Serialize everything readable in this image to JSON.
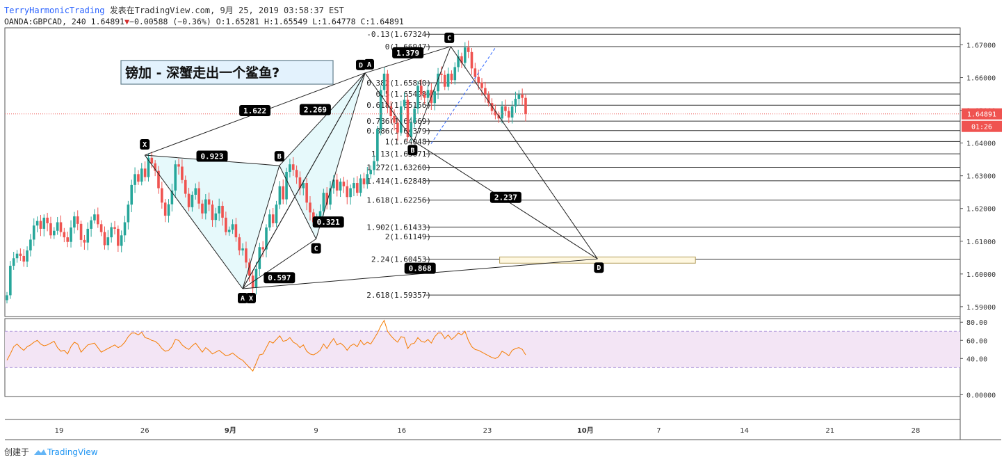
{
  "header": {
    "author": "TerryHarmonicTrading",
    "published": "发表在TradingView.com, 9月 25, 2019 03:58:37 EST",
    "symbol": "OANDA:GBPCAD, 240",
    "last": "1.64891",
    "change": "−0.00588 (−0.36%)",
    "o_label": "O:",
    "o": "1.65281",
    "h_label": "H:",
    "h": "1.65549",
    "l_label": "L:",
    "l": "1.64778",
    "c_label": "C:",
    "c": "1.64891"
  },
  "footer": {
    "created": "创建于",
    "brand": "TradingView"
  },
  "colors": {
    "up": "#26a69a",
    "down": "#ef5350",
    "pattern_fill": "#e0f7fa",
    "rsi_line": "#f57c00",
    "rsi_band": "#f3e5f5",
    "price_tag": "#ef5350",
    "label_bg": "#000000",
    "fib_line": "#333333"
  },
  "chart_data": {
    "type": "candlestick",
    "title": "镑加 - 深蟹走出一个鲨鱼?",
    "y_axis": {
      "range": [
        1.587,
        1.6752
      ],
      "ticks": [
        "1.59000",
        "1.60000",
        "1.61000",
        "1.62000",
        "1.63000",
        "1.64000",
        "1.65000",
        "1.66000",
        "1.67000"
      ]
    },
    "x_axis": {
      "ticks": [
        {
          "label": "19",
          "date": "2019-08-19"
        },
        {
          "label": "26",
          "date": "2019-08-26"
        },
        {
          "label": "9月",
          "date": "2019-09-02"
        },
        {
          "label": "9",
          "date": "2019-09-09"
        },
        {
          "label": "16",
          "date": "2019-09-16"
        },
        {
          "label": "23",
          "date": "2019-09-23"
        },
        {
          "label": "10月",
          "date": "2019-10-01"
        },
        {
          "label": "7",
          "date": "2019-10-07"
        },
        {
          "label": "14",
          "date": "2019-10-14"
        },
        {
          "label": "21",
          "date": "2019-10-21"
        },
        {
          "label": "28",
          "date": "2019-10-28"
        }
      ]
    },
    "current_price": {
      "value": 1.64891,
      "label": "1.64891",
      "countdown": "01:26"
    },
    "closes": [
      1.5935,
      1.6025,
      1.6048,
      1.6062,
      1.6055,
      1.6038,
      1.6072,
      1.6105,
      1.6148,
      1.6162,
      1.6138,
      1.6172,
      1.6155,
      1.6118,
      1.6132,
      1.6158,
      1.6128,
      1.6112,
      1.6098,
      1.6142,
      1.6176,
      1.6153,
      1.6104,
      1.6096,
      1.6138,
      1.6164,
      1.6182,
      1.6152,
      1.6128,
      1.6088,
      1.6112,
      1.6143,
      1.6138,
      1.6086,
      1.6118,
      1.6158,
      1.6212,
      1.6272,
      1.6305,
      1.6282,
      1.6322,
      1.6296,
      1.6355,
      1.6338,
      1.6315,
      1.6262,
      1.6218,
      1.6178,
      1.6213,
      1.6255,
      1.6335,
      1.6328,
      1.6287,
      1.6245,
      1.6204,
      1.6242,
      1.6262,
      1.6215,
      1.6185,
      1.6228,
      1.6212,
      1.6165,
      1.6185,
      1.6208,
      1.6172,
      1.6128,
      1.6135,
      1.6152,
      1.6112,
      1.6072,
      1.6078,
      1.6035,
      1.5995,
      1.5958,
      1.6015,
      1.6082,
      1.6075,
      1.6142,
      1.6182,
      1.6155,
      1.6212,
      1.6268,
      1.6228,
      1.6312,
      1.6335,
      1.6318,
      1.6295,
      1.6262,
      1.6278,
      1.6218,
      1.6188,
      1.6158,
      1.6168,
      1.6192,
      1.6248,
      1.6212,
      1.6262,
      1.6288,
      1.6255,
      1.6282,
      1.6268,
      1.6235,
      1.6262,
      1.6278,
      1.6248,
      1.6292,
      1.6274,
      1.6305,
      1.6318,
      1.6345,
      1.6442,
      1.6562,
      1.6612,
      1.6512,
      1.6482,
      1.6462,
      1.6432,
      1.6512,
      1.6532,
      1.6418,
      1.6462,
      1.6505,
      1.6575,
      1.6548,
      1.6538,
      1.6562,
      1.6522,
      1.6558,
      1.6612,
      1.6608,
      1.6572,
      1.6612,
      1.6592,
      1.6632,
      1.6665,
      1.6645,
      1.6692,
      1.6678,
      1.6628,
      1.6602,
      1.6585,
      1.6568,
      1.6548,
      1.6522,
      1.6498,
      1.6485,
      1.6475,
      1.6512,
      1.6498,
      1.6478,
      1.6512,
      1.6535,
      1.6548,
      1.6538,
      1.6489
    ],
    "harmonic_pattern_1": {
      "points": [
        {
          "label": "X",
          "date": "2019-08-26",
          "price": 1.6363
        },
        {
          "label": "A",
          "date": "2019-09-03",
          "price": 1.5955
        },
        {
          "label": "B",
          "date": "2019-09-06",
          "price": 1.6331
        },
        {
          "label": "C",
          "date": "2019-09-09",
          "price": 1.6107
        },
        {
          "label": "D",
          "date": "2019-09-13",
          "price": 1.6614
        }
      ],
      "ratios": [
        {
          "label": "0.923",
          "legs": "XA-AB"
        },
        {
          "label": "0.597",
          "legs": "AB-BC"
        },
        {
          "label": "2.269",
          "legs": "BC-CD"
        },
        {
          "label": "1.622",
          "legs": "XA-AD"
        }
      ]
    },
    "harmonic_pattern_2": {
      "points": [
        {
          "label": "X",
          "date": "2019-09-03",
          "price": 1.5955
        },
        {
          "label": "A",
          "date": "2019-09-13",
          "price": 1.6614
        },
        {
          "label": "B",
          "date": "2019-09-17",
          "price": 1.6405
        },
        {
          "label": "C",
          "date": "2019-09-20",
          "price": 1.6695
        },
        {
          "label": "D",
          "date": "2019-10-02",
          "price": 1.6046
        }
      ],
      "ratios": [
        {
          "label": "0.321",
          "legs": "XA-AB"
        },
        {
          "label": "1.379",
          "legs": "AB-BC"
        },
        {
          "label": "2.237",
          "legs": "BC-CD"
        },
        {
          "label": "0.868",
          "legs": "XA-XD"
        }
      ]
    },
    "fib_levels": [
      {
        "ratio": "-0.13",
        "price": 1.67324,
        "label": "-0.13(1.67324)"
      },
      {
        "ratio": "0",
        "price": 1.66947,
        "label": "0(1.66947)"
      },
      {
        "ratio": "0.382",
        "price": 1.6584,
        "label": "0.382(1.65840)"
      },
      {
        "ratio": "0.5",
        "price": 1.65498,
        "label": "0.5(1.65498)"
      },
      {
        "ratio": "0.618",
        "price": 1.65156,
        "label": "0.618(1.65156)"
      },
      {
        "ratio": "0.786",
        "price": 1.64669,
        "label": "0.786(1.64669)"
      },
      {
        "ratio": "0.886",
        "price": 1.64379,
        "label": "0.886(1.64379)"
      },
      {
        "ratio": "1",
        "price": 1.64048,
        "label": "1(1.64048)"
      },
      {
        "ratio": "1.13",
        "price": 1.63671,
        "label": "1.13(1.63671)"
      },
      {
        "ratio": "1.272",
        "price": 1.6326,
        "label": "1.272(1.63260)"
      },
      {
        "ratio": "1.414",
        "price": 1.62848,
        "label": "1.414(1.62848)"
      },
      {
        "ratio": "1.618",
        "price": 1.62256,
        "label": "1.618(1.62256)"
      },
      {
        "ratio": "1.902",
        "price": 1.61433,
        "label": "1.902(1.61433)"
      },
      {
        "ratio": "2",
        "price": 1.61149,
        "label": "2(1.61149)"
      },
      {
        "ratio": "2.24",
        "price": 1.60453,
        "label": "2.24(1.60453)"
      },
      {
        "ratio": "2.618",
        "price": 1.59357,
        "label": "2.618(1.59357)"
      }
    ],
    "target_zone": {
      "low": 1.6033,
      "high": 1.6052,
      "from": "2019-09-24",
      "to": "2019-10-10"
    },
    "rsi": {
      "range": [
        -2,
        84
      ],
      "ticks": [
        "80.00",
        "60.00",
        "40.00",
        "0.00000"
      ],
      "band": [
        30,
        70
      ],
      "values": [
        38,
        45,
        53,
        56,
        52,
        49,
        53,
        55,
        58,
        60,
        56,
        54,
        55,
        57,
        59,
        52,
        48,
        49,
        45,
        53,
        58,
        56,
        47,
        51,
        55,
        56,
        57,
        52,
        47,
        49,
        51,
        53,
        55,
        52,
        54,
        58,
        64,
        68,
        68,
        66,
        69,
        63,
        62,
        60,
        59,
        56,
        51,
        48,
        49,
        53,
        61,
        60,
        55,
        52,
        50,
        54,
        57,
        52,
        47,
        52,
        49,
        45,
        47,
        49,
        46,
        43,
        44,
        46,
        43,
        40,
        38,
        34,
        30,
        26,
        35,
        44,
        45,
        52,
        59,
        57,
        61,
        65,
        59,
        60,
        63,
        58,
        56,
        52,
        55,
        48,
        45,
        44,
        46,
        49,
        56,
        51,
        57,
        62,
        55,
        57,
        54,
        49,
        54,
        56,
        53,
        60,
        55,
        58,
        56,
        62,
        68,
        76,
        82,
        70,
        65,
        61,
        58,
        64,
        63,
        51,
        56,
        57,
        63,
        59,
        58,
        61,
        57,
        64,
        68,
        68,
        62,
        66,
        61,
        64,
        68,
        66,
        70,
        60,
        53,
        50,
        49,
        47,
        45,
        43,
        41,
        40,
        42,
        48,
        46,
        43,
        49,
        51,
        52,
        50,
        44
      ]
    }
  }
}
